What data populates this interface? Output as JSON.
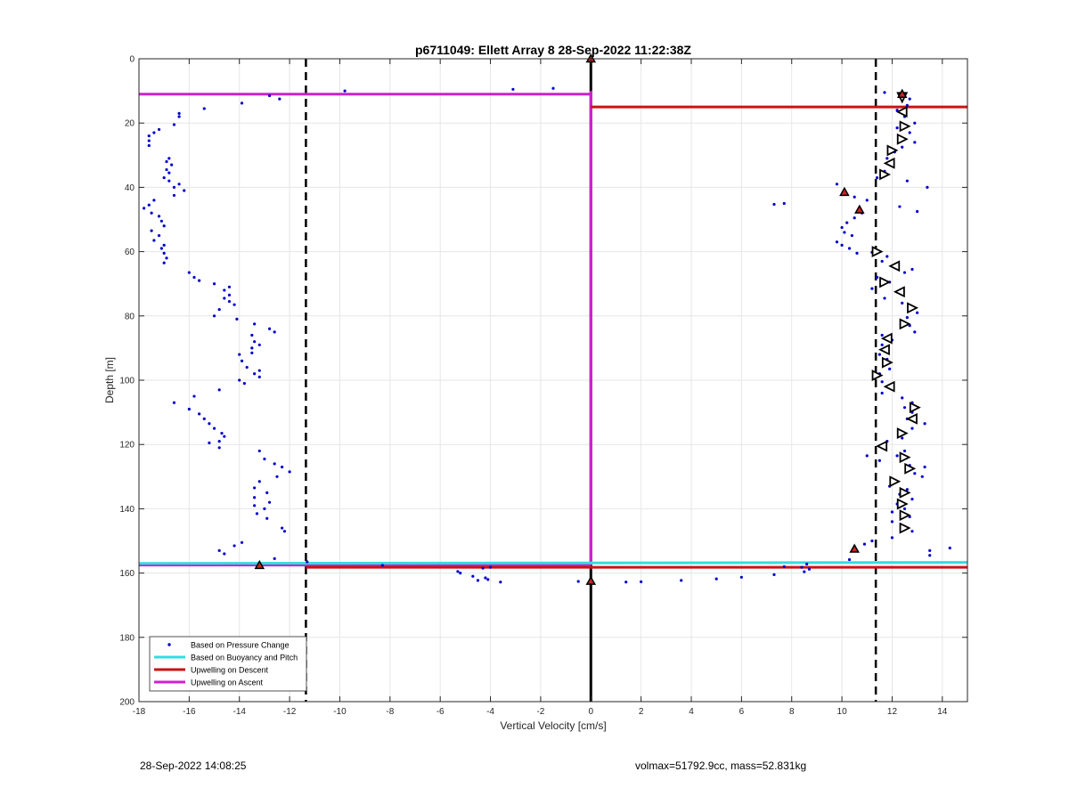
{
  "chart_data": {
    "type": "scatter",
    "title": "p6711049: Ellett Array 8 28-Sep-2022 11:22:38Z",
    "xlabel": "Vertical Velocity [cm/s]",
    "ylabel": "Depth [m]",
    "xlim": [
      -18,
      15
    ],
    "ylim": [
      0,
      200
    ],
    "y_reversed": true,
    "grid": true,
    "legend_placement": "bottom-left",
    "xticks": [
      -18,
      -16,
      -14,
      -12,
      -10,
      -8,
      -6,
      -4,
      -2,
      0,
      2,
      4,
      6,
      8,
      10,
      12,
      14
    ],
    "yticks": [
      0,
      20,
      40,
      60,
      80,
      100,
      120,
      140,
      160,
      180,
      200
    ],
    "colors": {
      "pressure": "#0000cc",
      "buoyancy": "#33dddd",
      "descent": "#cc1111",
      "ascent": "#cc22cc",
      "marker_red": "#cc2222"
    },
    "legend": [
      {
        "label": "Based on Pressure Change",
        "kind": "dot",
        "color": "#0000cc"
      },
      {
        "label": "Based on Buoyancy and Pitch",
        "kind": "line",
        "color": "#33dddd"
      },
      {
        "label": "Upwelling on Descent",
        "kind": "line",
        "color": "#cc1111"
      },
      {
        "label": "Upwelling on Ascent",
        "kind": "line",
        "color": "#cc22cc"
      }
    ],
    "vertical_lines": [
      {
        "x": 0,
        "style": "solid",
        "color": "#000000"
      },
      {
        "x": -11.35,
        "style": "dashed",
        "color": "#000000"
      },
      {
        "x": 11.35,
        "style": "dashed",
        "color": "#000000"
      }
    ],
    "segments": [
      {
        "name": "ascent_top",
        "color": "#cc22cc",
        "x1": -18,
        "x2": 0,
        "y1": 11,
        "y2": 11
      },
      {
        "name": "ascent_vert",
        "color": "#cc22cc",
        "x1": 0,
        "x2": 0,
        "y1": 10,
        "y2": 157.5
      },
      {
        "name": "ascent_bottom",
        "color": "#cc22cc",
        "x1": -18,
        "x2": 0,
        "y1": 157.5,
        "y2": 157.5
      },
      {
        "name": "descent_top",
        "color": "#cc1111",
        "x1": 0,
        "x2": 15,
        "y1": 15,
        "y2": 15
      },
      {
        "name": "descent_bottom",
        "color": "#cc1111",
        "x1": -11.35,
        "x2": 15,
        "y1": 158.2,
        "y2": 158.2
      },
      {
        "name": "buoyancy_bottom",
        "color": "#33dddd",
        "x1": -18,
        "x2": 15,
        "y1": 157,
        "y2": 156.7
      }
    ],
    "ascent_points": [
      [
        -13.2,
        157.6
      ],
      [
        -14.6,
        154
      ],
      [
        -14.8,
        153
      ],
      [
        -14.2,
        151.5
      ],
      [
        -13.9,
        150.5
      ],
      [
        -12.6,
        155.5
      ],
      [
        -12.2,
        147
      ],
      [
        -12.3,
        146
      ],
      [
        -12.9,
        143
      ],
      [
        -13.3,
        141.5
      ],
      [
        -13.0,
        140
      ],
      [
        -13.4,
        139
      ],
      [
        -12.8,
        138
      ],
      [
        -13.4,
        136.5
      ],
      [
        -12.9,
        135
      ],
      [
        -13.4,
        133.5
      ],
      [
        -13.2,
        131.5
      ],
      [
        -12.5,
        130
      ],
      [
        -12.0,
        128.5
      ],
      [
        -12.3,
        127
      ],
      [
        -12.6,
        126
      ],
      [
        -13.0,
        124.5
      ],
      [
        -13.2,
        122
      ],
      [
        -14.8,
        121
      ],
      [
        -14.8,
        119
      ],
      [
        -15.2,
        119.5
      ],
      [
        -14.6,
        117.5
      ],
      [
        -14.7,
        116.5
      ],
      [
        -15.0,
        115
      ],
      [
        -15.2,
        113.5
      ],
      [
        -15.4,
        112
      ],
      [
        -15.6,
        110.5
      ],
      [
        -16.0,
        109
      ],
      [
        -16.6,
        107
      ],
      [
        -15.8,
        105
      ],
      [
        -14.8,
        103
      ],
      [
        -13.8,
        101
      ],
      [
        -14.0,
        100
      ],
      [
        -13.2,
        99
      ],
      [
        -13.4,
        98
      ],
      [
        -13.2,
        97
      ],
      [
        -13.7,
        96
      ],
      [
        -13.9,
        94
      ],
      [
        -14.0,
        92
      ],
      [
        -13.5,
        91.5
      ],
      [
        -13.5,
        90
      ],
      [
        -13.2,
        89
      ],
      [
        -13.4,
        88
      ],
      [
        -13.5,
        86
      ],
      [
        -12.6,
        85
      ],
      [
        -12.8,
        84
      ],
      [
        -13.4,
        82.5
      ],
      [
        -14.1,
        81
      ],
      [
        -15.0,
        80
      ],
      [
        -14.8,
        78
      ],
      [
        -14.2,
        76.5
      ],
      [
        -14.4,
        75.5
      ],
      [
        -14.6,
        74.5
      ],
      [
        -14.4,
        73.5
      ],
      [
        -14.6,
        72
      ],
      [
        -14.4,
        71
      ],
      [
        -15.0,
        70
      ],
      [
        -15.6,
        69
      ],
      [
        -15.8,
        68
      ],
      [
        -16.0,
        66.5
      ],
      [
        -17.0,
        63.5
      ],
      [
        -16.9,
        62
      ],
      [
        -17.0,
        60.5
      ],
      [
        -17.1,
        59
      ],
      [
        -17.0,
        58
      ],
      [
        -17.4,
        56.5
      ],
      [
        -17.2,
        55
      ],
      [
        -17.5,
        53.5
      ],
      [
        -17.0,
        52
      ],
      [
        -17.1,
        50.5
      ],
      [
        -17.2,
        49
      ],
      [
        -17.5,
        48
      ],
      [
        -17.8,
        46.5
      ],
      [
        -17.6,
        45.5
      ],
      [
        -17.4,
        44
      ],
      [
        -16.6,
        42.5
      ],
      [
        -16.2,
        41
      ],
      [
        -16.6,
        40
      ],
      [
        -16.4,
        39
      ],
      [
        -16.8,
        38
      ],
      [
        -17.0,
        37
      ],
      [
        -16.8,
        35.5
      ],
      [
        -16.9,
        34.5
      ],
      [
        -16.7,
        33
      ],
      [
        -16.9,
        32
      ],
      [
        -16.8,
        31
      ],
      [
        -17.6,
        27
      ],
      [
        -17.6,
        25.5
      ],
      [
        -17.6,
        24
      ],
      [
        -17.4,
        23
      ],
      [
        -17.2,
        22
      ],
      [
        -16.6,
        20.5
      ],
      [
        -16.4,
        18
      ],
      [
        -16.4,
        17
      ],
      [
        -15.4,
        15.5
      ],
      [
        -13.9,
        13.8
      ],
      [
        -12.4,
        12.5
      ],
      [
        -12.8,
        11.5
      ],
      [
        -9.8,
        10
      ],
      [
        -3.1,
        9.5
      ],
      [
        -1.5,
        9.2
      ],
      [
        -11.3,
        156.5
      ],
      [
        -8.3,
        157.6
      ],
      [
        -5.3,
        159.5
      ],
      [
        -5.2,
        160
      ],
      [
        -4.7,
        161
      ],
      [
        -4.2,
        161.5
      ],
      [
        -4.5,
        162.3
      ],
      [
        -4.1,
        162
      ],
      [
        -3.6,
        162.8
      ],
      [
        -4.3,
        158.5
      ],
      [
        -4.0,
        158.2
      ],
      [
        0.0,
        162.6
      ]
    ],
    "descent_points": [
      [
        12.3,
        11
      ],
      [
        11.7,
        10.5
      ],
      [
        12.7,
        12.5
      ],
      [
        12.6,
        14.5
      ],
      [
        12.2,
        16
      ],
      [
        12.5,
        18
      ],
      [
        12.9,
        20
      ],
      [
        12.2,
        21.5
      ],
      [
        12.7,
        23
      ],
      [
        12.3,
        24.5
      ],
      [
        12.9,
        26
      ],
      [
        12.4,
        27.5
      ],
      [
        12.1,
        29
      ],
      [
        11.8,
        31
      ],
      [
        12.0,
        33
      ],
      [
        11.7,
        35
      ],
      [
        11.4,
        37
      ],
      [
        12.6,
        38
      ],
      [
        13.4,
        40
      ],
      [
        9.8,
        39
      ],
      [
        10.1,
        41.5
      ],
      [
        10.5,
        43
      ],
      [
        11.0,
        44
      ],
      [
        7.7,
        45
      ],
      [
        7.3,
        45.3
      ],
      [
        12.3,
        46
      ],
      [
        13.0,
        47.5
      ],
      [
        10.7,
        47
      ],
      [
        10.8,
        48
      ],
      [
        10.5,
        49.5
      ],
      [
        10.2,
        51
      ],
      [
        10.0,
        52.5
      ],
      [
        10.1,
        54
      ],
      [
        10.4,
        55
      ],
      [
        9.8,
        57
      ],
      [
        10.0,
        58
      ],
      [
        10.3,
        59
      ],
      [
        10.6,
        60.5
      ],
      [
        11.2,
        60.2
      ],
      [
        11.8,
        61.5
      ],
      [
        11.6,
        63
      ],
      [
        12.0,
        64.5
      ],
      [
        12.8,
        65.5
      ],
      [
        12.5,
        66.5
      ],
      [
        11.4,
        68
      ],
      [
        11.9,
        69.5
      ],
      [
        11.2,
        71.5
      ],
      [
        12.2,
        72.5
      ],
      [
        11.7,
        74.5
      ],
      [
        12.4,
        76
      ],
      [
        12.8,
        77.5
      ],
      [
        13.0,
        79
      ],
      [
        12.6,
        80.5
      ],
      [
        12.4,
        82.5
      ],
      [
        12.7,
        83
      ],
      [
        12.9,
        85
      ],
      [
        11.6,
        86
      ],
      [
        12.0,
        87.5
      ],
      [
        11.6,
        89
      ],
      [
        11.8,
        90.5
      ],
      [
        11.5,
        92
      ],
      [
        11.8,
        93.5
      ],
      [
        11.7,
        95
      ],
      [
        11.9,
        96.5
      ],
      [
        11.5,
        98
      ],
      [
        11.3,
        99
      ],
      [
        11.6,
        100.5
      ],
      [
        11.8,
        102
      ],
      [
        11.6,
        104
      ],
      [
        12.4,
        105.5
      ],
      [
        12.8,
        107
      ],
      [
        12.5,
        108.5
      ],
      [
        12.8,
        110
      ],
      [
        12.6,
        112
      ],
      [
        13.3,
        113.5
      ],
      [
        12.8,
        115
      ],
      [
        12.3,
        116.5
      ],
      [
        12.4,
        118
      ],
      [
        11.8,
        119
      ],
      [
        11.5,
        120.5
      ],
      [
        12.5,
        122
      ],
      [
        12.2,
        123.5
      ],
      [
        11.0,
        123.5
      ],
      [
        11.5,
        125
      ],
      [
        12.7,
        126.5
      ],
      [
        13.3,
        127
      ],
      [
        12.9,
        129
      ],
      [
        13.2,
        130
      ],
      [
        12.2,
        131.5
      ],
      [
        11.9,
        133
      ],
      [
        12.6,
        134
      ],
      [
        12.3,
        135.5
      ],
      [
        12.8,
        137
      ],
      [
        12.2,
        138.5
      ],
      [
        12.5,
        140
      ],
      [
        12.0,
        141
      ],
      [
        12.7,
        142.5
      ],
      [
        12.0,
        144
      ],
      [
        12.5,
        145.5
      ],
      [
        12.8,
        147
      ],
      [
        12.0,
        149
      ],
      [
        11.2,
        150
      ],
      [
        10.9,
        151
      ],
      [
        10.5,
        152
      ],
      [
        13.5,
        153
      ],
      [
        13.5,
        154.5
      ],
      [
        14.3,
        152.2
      ],
      [
        10.3,
        155.8
      ],
      [
        8.7,
        158.8
      ],
      [
        8.6,
        157.2
      ],
      [
        8.4,
        158.2
      ],
      [
        8.5,
        159.6
      ],
      [
        7.7,
        158
      ],
      [
        7.3,
        160.5
      ],
      [
        6.0,
        161.3
      ],
      [
        5.0,
        161.8
      ],
      [
        3.6,
        162.3
      ],
      [
        2.0,
        162.7
      ],
      [
        1.4,
        162.8
      ],
      [
        -0.5,
        162.6
      ]
    ],
    "triangle_markers": [
      {
        "x": 12.4,
        "y": 12,
        "dir": "down"
      },
      {
        "x": 12.4,
        "y": 16.5,
        "dir": "left"
      },
      {
        "x": 12.5,
        "y": 21,
        "dir": "right"
      },
      {
        "x": 12.4,
        "y": 25,
        "dir": "right"
      },
      {
        "x": 12.0,
        "y": 28.5,
        "dir": "right"
      },
      {
        "x": 11.9,
        "y": 32.5,
        "dir": "left"
      },
      {
        "x": 11.7,
        "y": 36,
        "dir": "right"
      },
      {
        "x": 11.4,
        "y": 60,
        "dir": "right"
      },
      {
        "x": 12.1,
        "y": 64.5,
        "dir": "left"
      },
      {
        "x": 11.7,
        "y": 69.5,
        "dir": "right"
      },
      {
        "x": 12.3,
        "y": 72.5,
        "dir": "left"
      },
      {
        "x": 12.8,
        "y": 77.5,
        "dir": "right"
      },
      {
        "x": 12.5,
        "y": 82.5,
        "dir": "right"
      },
      {
        "x": 11.8,
        "y": 87,
        "dir": "left"
      },
      {
        "x": 11.7,
        "y": 90.5,
        "dir": "left"
      },
      {
        "x": 11.8,
        "y": 94.5,
        "dir": "right"
      },
      {
        "x": 11.4,
        "y": 98.5,
        "dir": "right"
      },
      {
        "x": 11.9,
        "y": 102,
        "dir": "left"
      },
      {
        "x": 12.9,
        "y": 108.5,
        "dir": "right"
      },
      {
        "x": 12.8,
        "y": 112,
        "dir": "left"
      },
      {
        "x": 12.4,
        "y": 116.5,
        "dir": "right"
      },
      {
        "x": 11.6,
        "y": 120.5,
        "dir": "left"
      },
      {
        "x": 12.5,
        "y": 124,
        "dir": "right"
      },
      {
        "x": 12.7,
        "y": 127.5,
        "dir": "right"
      },
      {
        "x": 12.1,
        "y": 131.5,
        "dir": "right"
      },
      {
        "x": 12.5,
        "y": 135,
        "dir": "right"
      },
      {
        "x": 12.4,
        "y": 138.5,
        "dir": "right"
      },
      {
        "x": 12.5,
        "y": 142,
        "dir": "right"
      },
      {
        "x": 12.5,
        "y": 146,
        "dir": "right"
      }
    ],
    "red_markers": [
      {
        "x": 0.0,
        "y": 0
      },
      {
        "x": 12.4,
        "y": 11
      },
      {
        "x": 10.1,
        "y": 41.5
      },
      {
        "x": 10.7,
        "y": 47
      },
      {
        "x": 10.5,
        "y": 152.5
      },
      {
        "x": -13.2,
        "y": 157.6
      },
      {
        "x": 0.0,
        "y": 162.5
      }
    ]
  },
  "footer": {
    "left_text": "28-Sep-2022 14:08:25",
    "right_text": "volmax=51792.9cc, mass=52.831kg"
  }
}
